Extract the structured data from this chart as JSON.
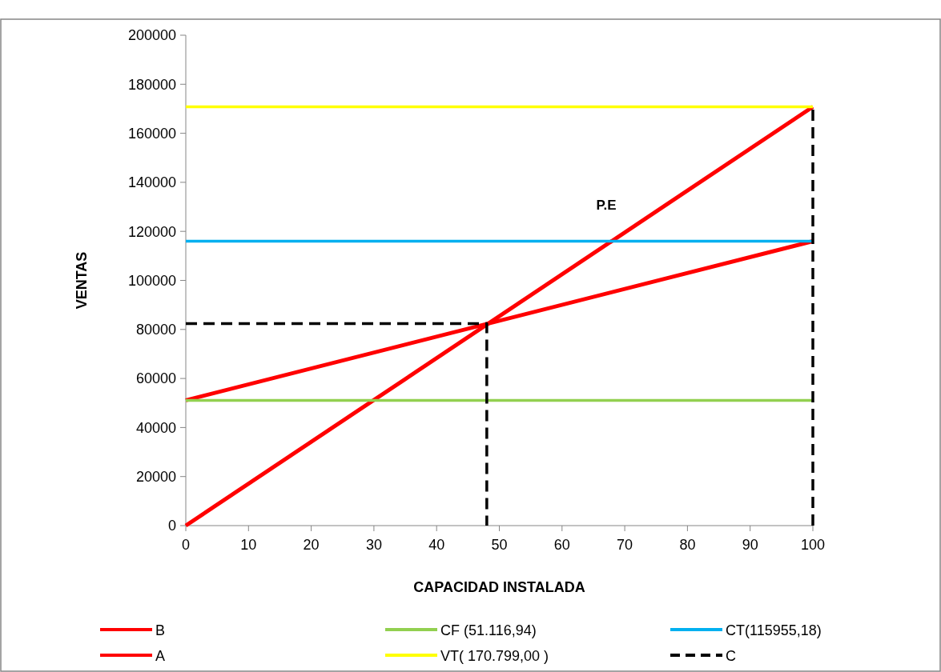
{
  "chart_data": {
    "type": "line",
    "xlabel": "CAPACIDAD INSTALADA",
    "ylabel": "VENTAS",
    "x": [
      0,
      100
    ],
    "xlim": [
      0,
      100
    ],
    "xticks": [
      0,
      10,
      20,
      30,
      40,
      50,
      60,
      70,
      80,
      90,
      100
    ],
    "ylim": [
      0,
      200000
    ],
    "yticks": [
      0,
      20000,
      40000,
      60000,
      80000,
      100000,
      120000,
      140000,
      160000,
      180000,
      200000
    ],
    "grid": false,
    "legend": "bottom",
    "marker": "none",
    "annotations": [
      "P.E"
    ],
    "series": [
      {
        "name": "B",
        "color": "#ff0000",
        "values": [
          0,
          170800
        ]
      },
      {
        "name": "A",
        "color": "#ff0000",
        "values": [
          51100,
          116000
        ]
      },
      {
        "name": "CF (51.116,94)",
        "color": "#92d050",
        "values": [
          51100,
          51100
        ]
      },
      {
        "name": "VT( 170.799,00 )",
        "color": "#ffff00",
        "values": [
          170800,
          170800
        ]
      },
      {
        "name": "CT(115955,18)",
        "color": "#00b0f0",
        "values": [
          116000,
          116000
        ]
      },
      {
        "name": "C",
        "color": "#000000",
        "line_style": "dashed",
        "x": [
          0,
          48,
          48,
          null,
          100,
          100
        ],
        "values": [
          82400,
          82400,
          0,
          null,
          0,
          170800
        ]
      }
    ]
  }
}
